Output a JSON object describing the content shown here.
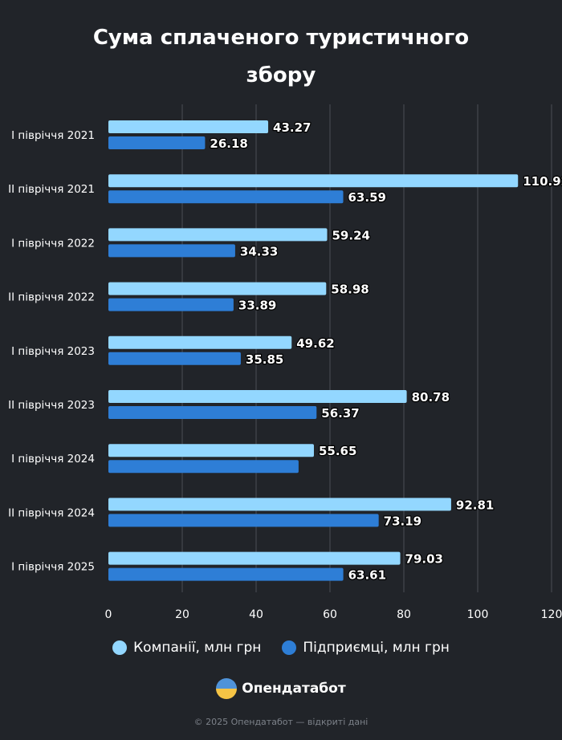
{
  "title_lines": [
    "Сума сплаченого туристичного",
    "збору"
  ],
  "colors": {
    "companies": "#93d7ff",
    "entrepreneurs": "#2e7ed6",
    "grid": "#4a4e55",
    "background": "#212429"
  },
  "chart_data": {
    "type": "bar",
    "orientation": "horizontal",
    "title": "Сума сплаченого туристичного збору",
    "categories": [
      "І півріччя 2021",
      "ІІ півріччя 2021",
      "І півріччя 2022",
      "ІІ півріччя 2022",
      "І півріччя 2023",
      "ІІ півріччя 2023",
      "І півріччя 2024",
      "ІІ півріччя 2024",
      "І півріччя 2025"
    ],
    "series": [
      {
        "name": "Компанії, млн грн",
        "values": [
          43.27,
          110.92,
          59.24,
          58.98,
          49.62,
          80.78,
          55.65,
          92.81,
          79.03
        ],
        "labels": [
          "43.27",
          "110.92",
          "59.24",
          "58.98",
          "49.62",
          "80.78",
          "55.65",
          "92.81",
          "79.03"
        ]
      },
      {
        "name": "Підприємці, млн грн",
        "values": [
          26.18,
          63.59,
          34.33,
          33.89,
          35.85,
          56.37,
          51.5,
          73.19,
          63.61
        ],
        "labels": [
          "26.18",
          "63.59",
          "34.33",
          "33.89",
          "35.85",
          "56.37",
          "",
          "73.19",
          "63.61"
        ]
      }
    ],
    "xlim": [
      0,
      120
    ],
    "xticks": [
      "0",
      "20",
      "40",
      "60",
      "80",
      "100",
      "120"
    ],
    "grid": true,
    "legend": "bottom"
  },
  "legend": [
    {
      "label": "Компанії, млн грн"
    },
    {
      "label": "Підприємці, млн грн"
    }
  ],
  "brand": "Опендатабот",
  "footer": "© 2025 Опендатабот — відкриті дані"
}
